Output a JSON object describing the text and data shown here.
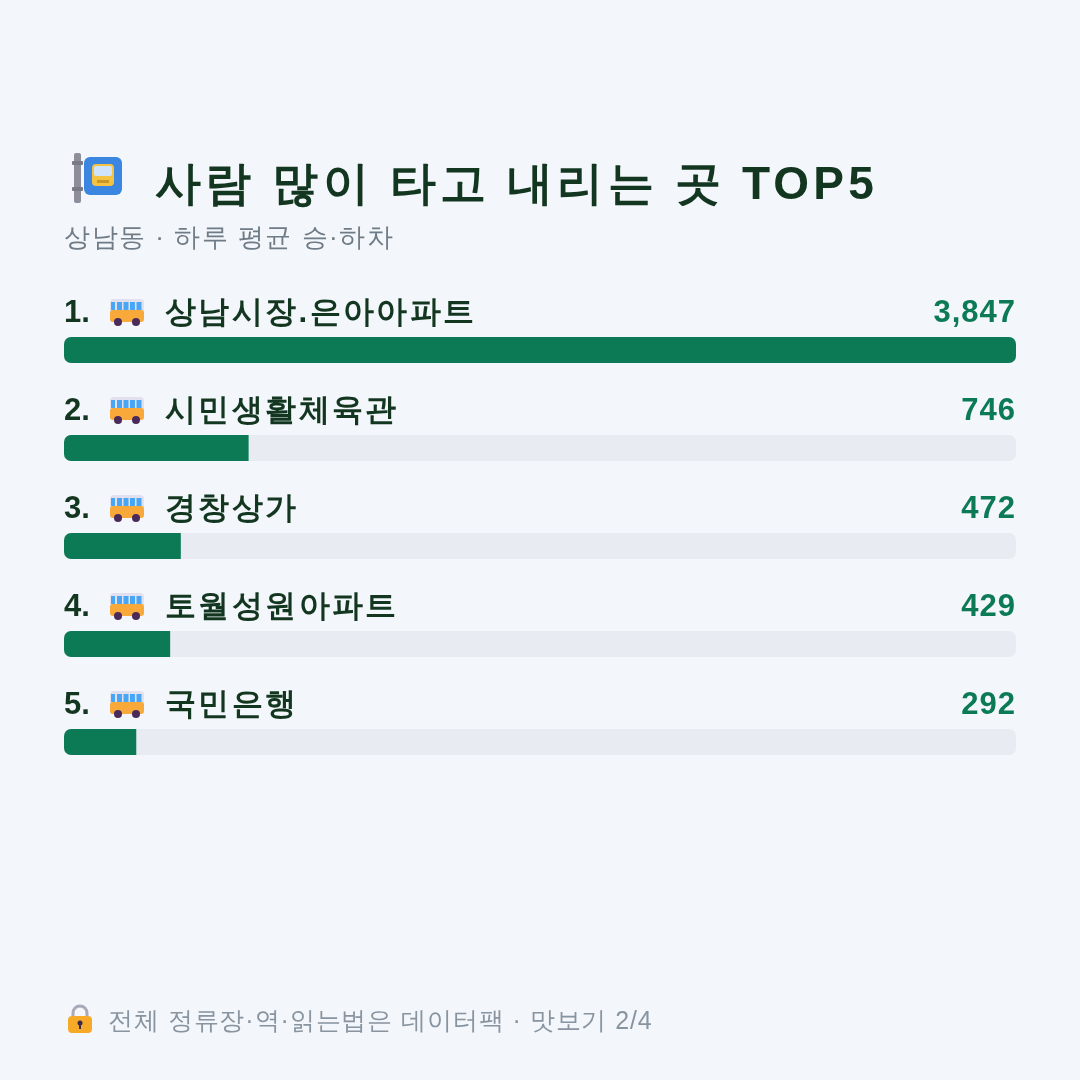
{
  "chart_data": {
    "type": "bar",
    "orientation": "horizontal",
    "title": "사람 많이 타고 내리는 곳 TOP5",
    "subtitle": "상남동 · 하루 평균 승·하차",
    "categories": [
      "상남시장.은아아파트",
      "시민생활체육관",
      "경창상가",
      "토월성원아파트",
      "국민은행"
    ],
    "values": [
      3847,
      746,
      472,
      429,
      292
    ],
    "color": "#0b7a55",
    "value_labels": [
      "3,847",
      "746",
      "472",
      "429",
      "292"
    ],
    "annotations": [
      "1.",
      "2.",
      "3.",
      "4.",
      "5.",
      "전체 정류장·역·읽는법은 데이터팩 · 맛보기 2/4"
    ]
  }
}
